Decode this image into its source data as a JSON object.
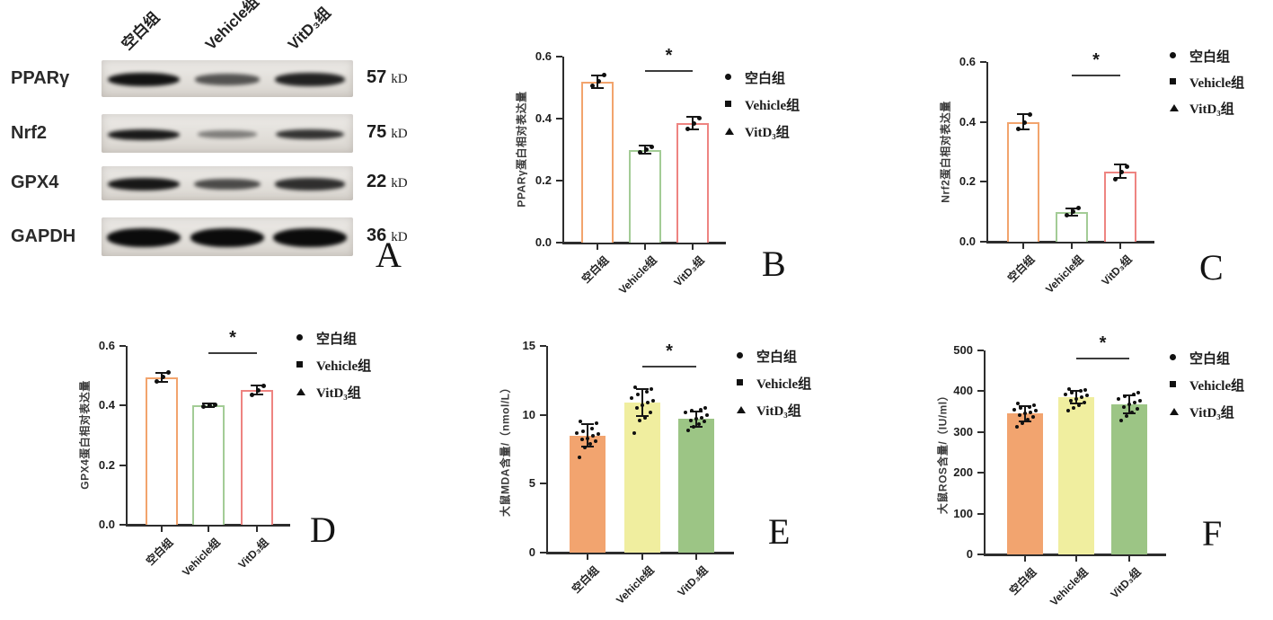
{
  "figure_title": "",
  "panel_a": {
    "letter": "A",
    "lane_labels": [
      "空白组",
      "Vehicle组",
      "VitD₃组"
    ],
    "rows": [
      {
        "protein": "PPARγ",
        "mw": "57",
        "unit": "kD",
        "band_intensities": [
          0.95,
          0.55,
          0.85
        ]
      },
      {
        "protein": "Nrf2",
        "mw": "75",
        "unit": "kD",
        "band_intensities": [
          0.9,
          0.28,
          0.75
        ]
      },
      {
        "protein": "GPX4",
        "mw": "22",
        "unit": "kD",
        "band_intensities": [
          0.92,
          0.6,
          0.78
        ]
      },
      {
        "protein": "GAPDH",
        "mw": "36",
        "unit": "kD",
        "band_intensities": [
          1,
          1,
          1
        ]
      }
    ]
  },
  "legend": {
    "entries": [
      {
        "marker": "circle",
        "label": "空白组"
      },
      {
        "marker": "square",
        "label": "Vehicle组"
      },
      {
        "marker": "triangle",
        "label": "VitD₃组"
      }
    ]
  },
  "colors": {
    "outline_orange": "#f2a46d",
    "outline_green": "#a3cc96",
    "outline_red": "#ee8481",
    "fill_orange": "#f2a46f",
    "fill_yellow": "#f0ee9f",
    "fill_green": "#9cc585",
    "axis": "#2d2d2d",
    "dot": "#101010"
  },
  "chart_data": [
    {
      "panel": "B",
      "letter": "B",
      "type": "bar",
      "ylabel": "PPARγ蛋白相对表达量",
      "ylim": [
        0,
        0.6
      ],
      "yticks": [
        0,
        0.2,
        0.4,
        0.6
      ],
      "ytick_labels": [
        "0.0",
        "0.2",
        "0.4",
        "0.6"
      ],
      "categories": [
        "空白组",
        "Vehicle组",
        "VitD₃组"
      ],
      "values": [
        0.52,
        0.3,
        0.385
      ],
      "errors": [
        0.02,
        0.012,
        0.02
      ],
      "points": [
        [
          0.505,
          0.52,
          0.54
        ],
        [
          0.292,
          0.3,
          0.308
        ],
        [
          0.368,
          0.385,
          0.402
        ]
      ],
      "bar_style": "outline",
      "bar_colors": [
        "#f2a46d",
        "#a3cc96",
        "#ee8481"
      ],
      "significance": {
        "between": [
          1,
          2
        ],
        "label": "*"
      },
      "grid": false,
      "legend_position": "right"
    },
    {
      "panel": "C",
      "letter": "C",
      "type": "bar",
      "ylabel": "Nrf2蛋白相对表达量",
      "ylim": [
        0,
        0.6
      ],
      "yticks": [
        0,
        0.2,
        0.4,
        0.6
      ],
      "ytick_labels": [
        "0.0",
        "0.2",
        "0.4",
        "0.6"
      ],
      "categories": [
        "空白组",
        "Vehicle组",
        "VitD₃组"
      ],
      "values": [
        0.4,
        0.1,
        0.235
      ],
      "errors": [
        0.025,
        0.012,
        0.022
      ],
      "points": [
        [
          0.378,
          0.398,
          0.425
        ],
        [
          0.088,
          0.1,
          0.112
        ],
        [
          0.21,
          0.232,
          0.252
        ]
      ],
      "bar_style": "outline",
      "bar_colors": [
        "#f2a46d",
        "#a3cc96",
        "#ee8481"
      ],
      "significance": {
        "between": [
          1,
          2
        ],
        "label": "*"
      },
      "grid": false,
      "legend_position": "right"
    },
    {
      "panel": "D",
      "letter": "D",
      "type": "bar",
      "ylabel": "GPX4蛋白相对表达量",
      "ylim": [
        0,
        0.6
      ],
      "yticks": [
        0,
        0.2,
        0.4,
        0.6
      ],
      "ytick_labels": [
        "0.0",
        "0.2",
        "0.4",
        "0.6"
      ],
      "categories": [
        "空白组",
        "Vehicle组",
        "VitD₃组"
      ],
      "values": [
        0.495,
        0.4,
        0.452
      ],
      "errors": [
        0.015,
        0.006,
        0.015
      ],
      "points": [
        [
          0.482,
          0.495,
          0.51
        ],
        [
          0.396,
          0.4,
          0.404
        ],
        [
          0.437,
          0.452,
          0.465
        ]
      ],
      "bar_style": "outline",
      "bar_colors": [
        "#f2a46d",
        "#a3cc96",
        "#ee8481"
      ],
      "significance": {
        "between": [
          1,
          2
        ],
        "label": "*"
      },
      "grid": false,
      "legend_position": "right"
    },
    {
      "panel": "E",
      "letter": "E",
      "type": "bar",
      "ylabel": "大鼠MDA含量/（nmol/L）",
      "ylim": [
        0,
        15
      ],
      "yticks": [
        0,
        5,
        10,
        15
      ],
      "ytick_labels": [
        "0",
        "5",
        "10",
        "15"
      ],
      "categories": [
        "空白组",
        "Vehicle组",
        "VitD₃组"
      ],
      "values": [
        8.5,
        10.9,
        9.7
      ],
      "errors": [
        0.8,
        1.0,
        0.55
      ],
      "points": [
        [
          6.9,
          7.6,
          7.9,
          8.1,
          8.2,
          8.3,
          8.5,
          8.6,
          8.7,
          8.8,
          9.0,
          9.4,
          9.5
        ],
        [
          8.7,
          9.6,
          9.8,
          10.2,
          10.5,
          10.7,
          10.9,
          11.0,
          11.2,
          11.5,
          11.7,
          11.9,
          12.0
        ],
        [
          8.9,
          9.1,
          9.3,
          9.5,
          9.6,
          9.7,
          9.8,
          10.0,
          10.2,
          10.3,
          10.4,
          10.5
        ]
      ],
      "bar_style": "fill",
      "bar_colors": [
        "#f2a46f",
        "#f0ee9f",
        "#9cc585"
      ],
      "significance": {
        "between": [
          1,
          2
        ],
        "label": "*"
      },
      "grid": false,
      "legend_position": "right"
    },
    {
      "panel": "F",
      "letter": "F",
      "type": "bar",
      "ylabel": "大鼠ROS含量/（IU/ml）",
      "ylim": [
        0,
        500
      ],
      "yticks": [
        0,
        100,
        200,
        300,
        400,
        500
      ],
      "ytick_labels": [
        "0",
        "100",
        "200",
        "300",
        "400",
        "500"
      ],
      "categories": [
        "空白组",
        "Vehicle组",
        "VitD₃组"
      ],
      "values": [
        345,
        385,
        368
      ],
      "errors": [
        18,
        15,
        22
      ],
      "points": [
        [
          312,
          322,
          330,
          336,
          342,
          345,
          348,
          352,
          355,
          358,
          362,
          366,
          370
        ],
        [
          352,
          360,
          366,
          372,
          377,
          381,
          385,
          389,
          393,
          397,
          400,
          403,
          406
        ],
        [
          328,
          340,
          348,
          356,
          362,
          367,
          372,
          377,
          382,
          387,
          392,
          396
        ]
      ],
      "bar_style": "fill",
      "bar_colors": [
        "#f2a46f",
        "#f0ee9f",
        "#9cc585"
      ],
      "significance": {
        "between": [
          1,
          2
        ],
        "label": "*"
      },
      "grid": false,
      "legend_position": "right"
    }
  ]
}
